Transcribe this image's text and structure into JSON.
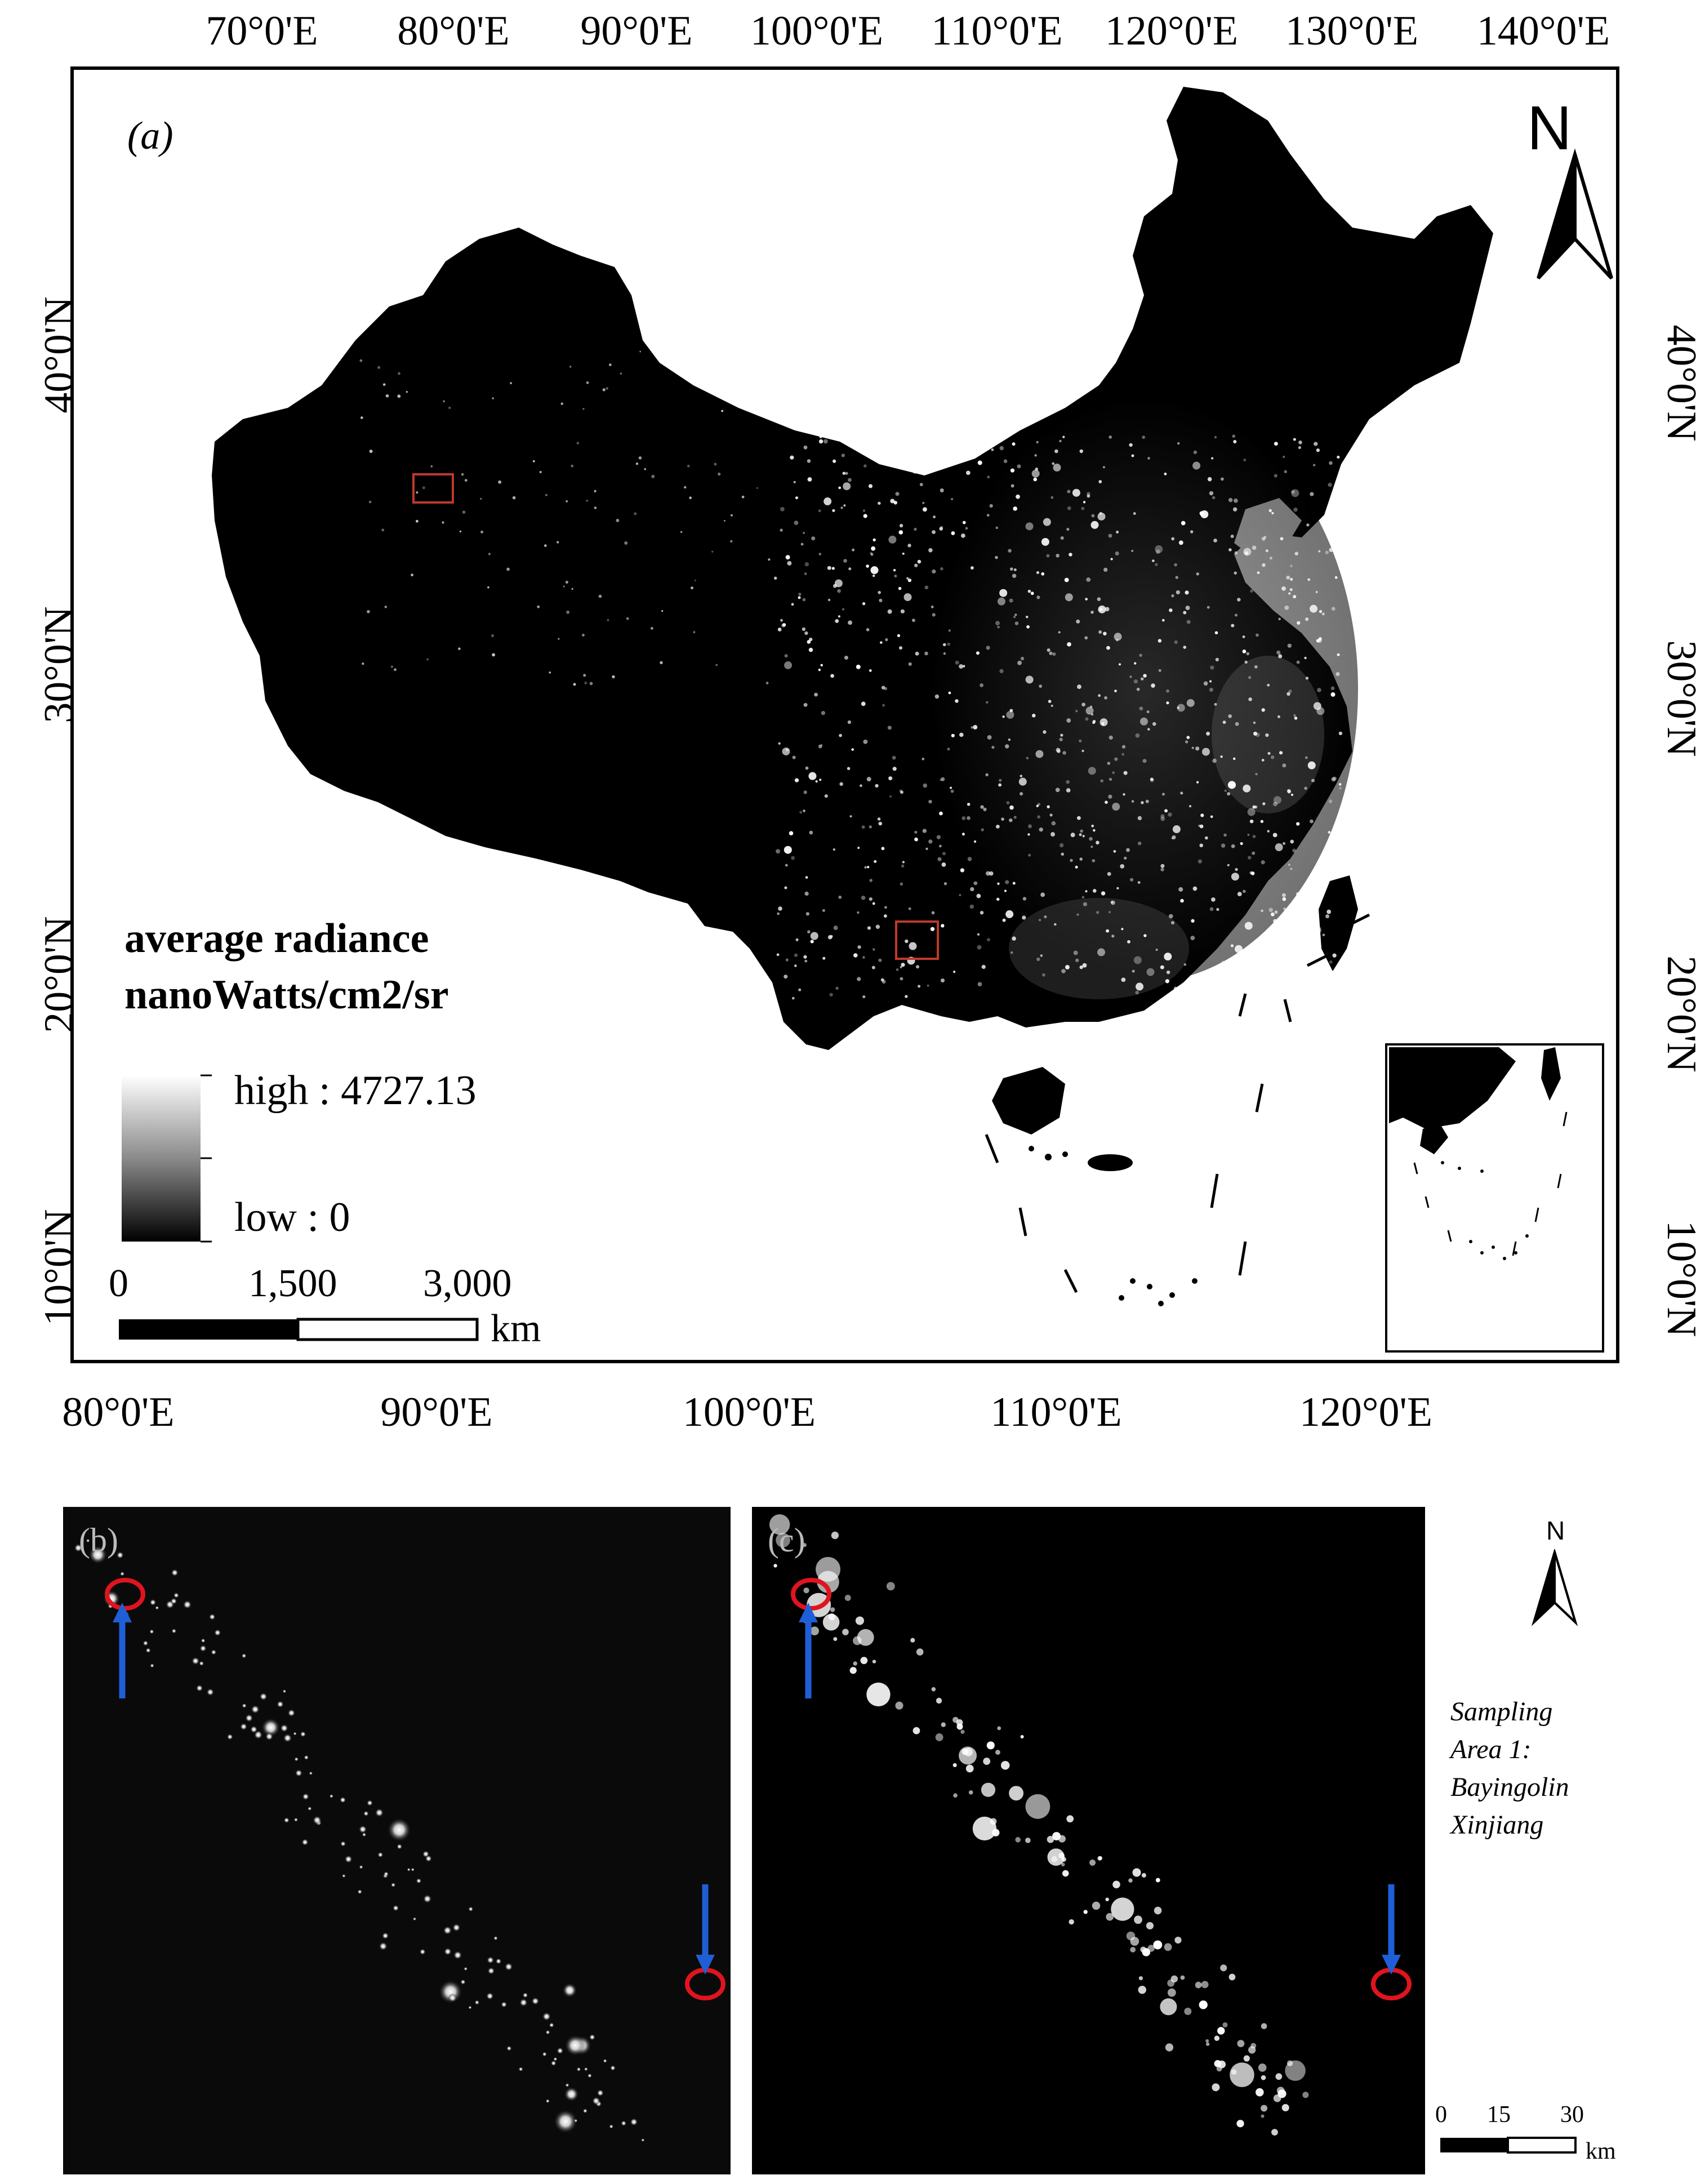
{
  "panel_a": {
    "label": "(a)",
    "top_ticks": [
      "70°0'E",
      "80°0'E",
      "90°0'E",
      "100°0'E",
      "110°0'E",
      "120°0'E",
      "130°0'E",
      "140°0'E"
    ],
    "bottom_ticks": [
      "80°0'E",
      "90°0'E",
      "100°0'E",
      "110°0'E",
      "120°0'E"
    ],
    "left_ticks": [
      "40°0'N",
      "30°0'N",
      "20°0'N",
      "10°0'N"
    ],
    "right_ticks": [
      "40°0'N",
      "30°0'N",
      "20°0'N",
      "10°0'N"
    ],
    "north_label": "N",
    "legend": {
      "title_line1": "average radiance",
      "title_line2": "nanoWatts/cm2/sr",
      "high_label": "high : 4727.13",
      "low_label": "low : 0"
    },
    "scale_bar": {
      "ticks": [
        "0",
        "1,500",
        "3,000"
      ],
      "unit": "km"
    },
    "colors": {
      "land": "#000000",
      "box": "#c0392b",
      "background": "#ffffff"
    }
  },
  "panel_b": {
    "label": "(b)"
  },
  "panel_c": {
    "label": "(c)"
  },
  "side": {
    "north_label": "N",
    "caption": [
      "Sampling",
      "Area 1:",
      "Bayingolin",
      "Xinjiang"
    ],
    "scale_ticks": [
      "0",
      "15",
      "30"
    ],
    "scale_unit": "km"
  },
  "annotation_colors": {
    "circle": "#e0141e",
    "arrow": "#1e5fd8"
  }
}
